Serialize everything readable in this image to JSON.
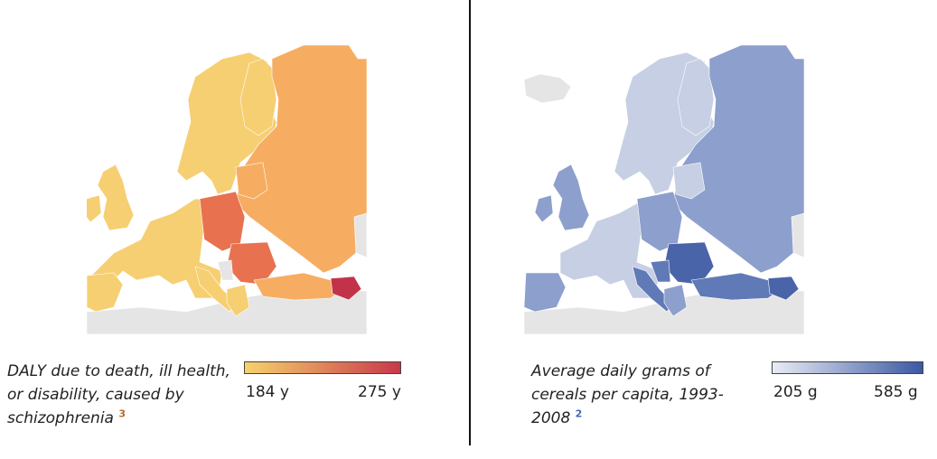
{
  "left": {
    "caption": "DALY due to death, ill health, or disability, caused by schizophrenia",
    "footnote": "3",
    "legend": {
      "min_label": "184 y",
      "max_label": "275 y",
      "min_color": "#f7d26c",
      "max_color": "#c8384a"
    },
    "palette": {
      "low": "#f5cf72",
      "mid": "#f6ad62",
      "high": "#e8724f",
      "max": "#c2334a",
      "nodata": "#e5e5e5"
    }
  },
  "right": {
    "caption": "Average daily grams of cereals per capita, 1993-2008",
    "footnote": "2",
    "legend": {
      "min_label": "205 g",
      "max_label": "585 g",
      "min_color": "#e9ecf4",
      "max_color": "#3b58a2"
    },
    "palette": {
      "low": "#c6cfe4",
      "mid": "#8d9fcc",
      "high": "#6079b7",
      "max": "#4a64a9",
      "nodata": "#e5e5e5"
    }
  },
  "colors": {
    "footnote_left": "#b36b2a",
    "footnote_right": "#3f66b8",
    "divider": "#111111"
  }
}
